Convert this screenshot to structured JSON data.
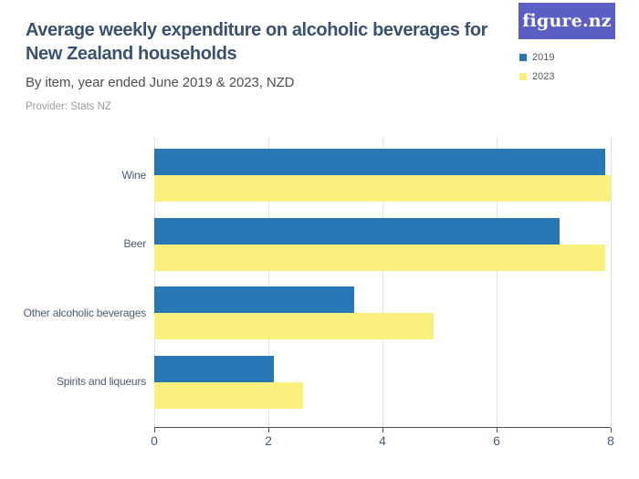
{
  "header": {
    "title_line1": "Average weekly expenditure on alcoholic beverages for",
    "title_line2": "New Zealand households",
    "subtitle": "By item, year ended June 2019 & 2023, NZD",
    "provider": "Provider: Stats NZ"
  },
  "logo": {
    "text": "figure.nz"
  },
  "chart_data": {
    "type": "bar",
    "orientation": "horizontal",
    "title": "Average weekly expenditure on alcoholic beverages for New Zealand households",
    "subtitle": "By item, year ended June 2019 & 2023, NZD",
    "categories": [
      "Wine",
      "Beer",
      "Other alcoholic beverages",
      "Spirits and liqueurs"
    ],
    "series": [
      {
        "name": "2019",
        "color": "#2878b5",
        "values": [
          7.9,
          7.1,
          3.5,
          2.1
        ]
      },
      {
        "name": "2023",
        "color": "#f9f07d",
        "values": [
          8.0,
          7.9,
          4.9,
          2.6
        ]
      }
    ],
    "xlabel": "",
    "ylabel": "",
    "xlim": [
      0,
      8
    ],
    "xticks": [
      0,
      2,
      4,
      6,
      8
    ],
    "grid": true,
    "legend_position": "top-right"
  },
  "colors": {
    "title": "#3a5272",
    "subtitle": "#4e4e4e",
    "provider": "#9c9c9c",
    "axis_labels": "#4a5b7b",
    "gridline": "#e2e2e2",
    "axis_line": "#4f4f4f",
    "logo_background": "#5b5fc4",
    "logo_text": "#ffffff",
    "series_2019": "#2878b5",
    "series_2023": "#f9f07d"
  }
}
